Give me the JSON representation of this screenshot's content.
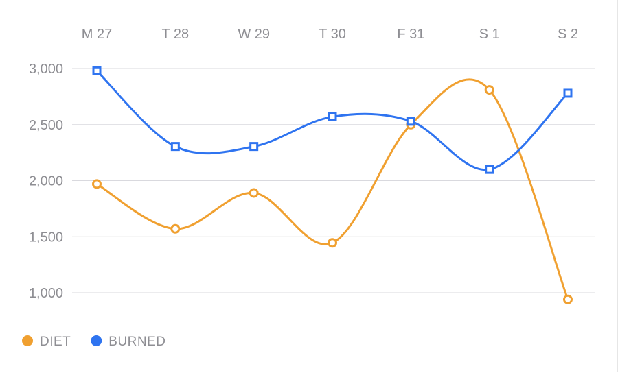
{
  "chart_data": {
    "type": "line",
    "title": "",
    "xlabel": "",
    "ylabel": "",
    "categories": [
      "M 27",
      "T 28",
      "W 29",
      "T 30",
      "F 31",
      "S 1",
      "S 2"
    ],
    "y_ticks": [
      "3,000",
      "2,500",
      "2,000",
      "1,500",
      "1,000"
    ],
    "y_tick_values": [
      3000,
      2500,
      2000,
      1500,
      1000
    ],
    "ylim": [
      1000,
      3000
    ],
    "x_axis_position": "top",
    "grid": true,
    "legend_position": "bottom-left",
    "series": [
      {
        "name": "DIET",
        "color": "#f0a030",
        "marker": "circle",
        "values": [
          1970,
          1570,
          1890,
          1445,
          2500,
          2810,
          940
        ]
      },
      {
        "name": "BURNED",
        "color": "#2f74f0",
        "marker": "square",
        "values": [
          2980,
          2305,
          2305,
          2570,
          2530,
          2100,
          2780
        ]
      }
    ]
  }
}
